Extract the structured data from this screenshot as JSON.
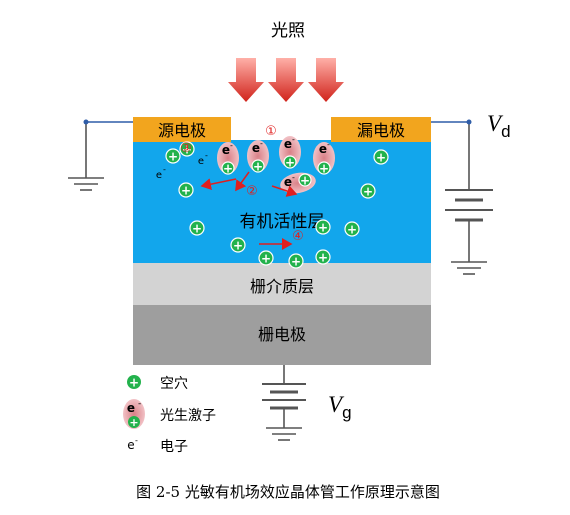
{
  "title": "光照",
  "labels": {
    "source": "源电极",
    "drain": "漏电极",
    "active_layer": "有机活性层",
    "dielectric": "栅介质层",
    "gate": "栅电极",
    "vd_main": "V",
    "vd_sub": "d",
    "vg_main": "V",
    "vg_sub": "g"
  },
  "markers": [
    "①",
    "②",
    "③",
    "④"
  ],
  "electron_symbol": "e",
  "electron_sup": "-",
  "plus_symbol": "+",
  "legend": [
    {
      "icon": "hole-icon",
      "label": "空穴"
    },
    {
      "icon": "exciton-icon",
      "label": "光生激子"
    },
    {
      "icon": "electron-icon",
      "label": "电子"
    }
  ],
  "caption": "图  2-5  光敏有机场效应晶体管工作原理示意图",
  "colors": {
    "electrode": "#f2a51e",
    "active_layer": "#12a6ec",
    "dielectric": "#cfcfcf",
    "gate": "#9e9e9e",
    "hole": "#22b24c",
    "exciton": "#e8a0a6",
    "arrow": "#e01f1f",
    "wire": "#2f5da8"
  }
}
